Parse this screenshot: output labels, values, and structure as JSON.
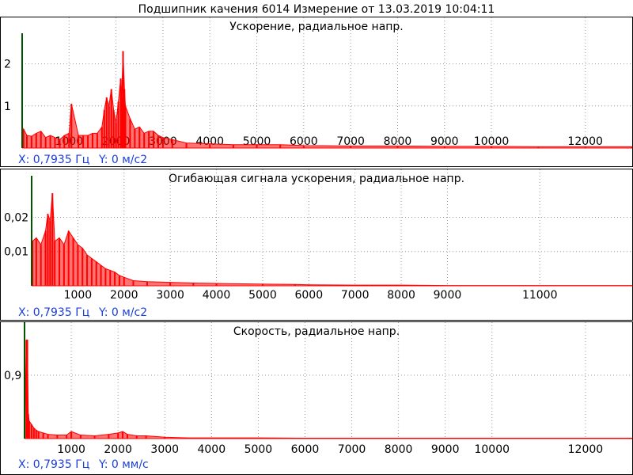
{
  "window": {
    "title": "Подшипник качения 6014  Измерение от 13.03.2019 10:04:11"
  },
  "colors": {
    "signal": "#ff0000",
    "grid": "#9a9a9a",
    "axis": "#005400",
    "cursor_text": "#1a3fd9"
  },
  "panels": [
    {
      "title": "Ускорение, радиальное напр.",
      "cursor": {
        "x": "X: 0,7935 Гц",
        "y": "Y: 0 м/с2"
      }
    },
    {
      "title": "Огибающая сигнала ускорения, радиальное напр.",
      "cursor": {
        "x": "X: 0,7935 Гц",
        "y": "Y: 0 м/с2"
      }
    },
    {
      "title": "Скорость, радиальное напр.",
      "cursor": {
        "x": "X: 0,7935 Гц",
        "y": "Y: 0 мм/с"
      }
    }
  ],
  "chart_data": [
    {
      "type": "bar",
      "title": "Ускорение, радиальное напр.",
      "xlabel": "",
      "ylabel": "",
      "xlim": [
        0,
        13000
      ],
      "ylim": [
        0,
        2.35
      ],
      "x_ticks": [
        1000,
        2000,
        3000,
        4000,
        5000,
        6000,
        7000,
        8000,
        9000,
        10000,
        12000
      ],
      "y_ticks": [
        1,
        2
      ],
      "grid": true,
      "series": [
        {
          "x": [
            30,
            100,
            200,
            300,
            400,
            500,
            600,
            700,
            800,
            900,
            1000,
            1050,
            1200,
            1300,
            1400,
            1500,
            1600,
            1700,
            1750,
            1800,
            1850,
            1900,
            1950,
            2000,
            2050,
            2100,
            2120,
            2150,
            2180,
            2200,
            2300,
            2400,
            2500,
            2600,
            2700,
            2800,
            2900,
            3000,
            3200,
            3500,
            4000,
            4500,
            5000,
            5500,
            6000,
            7000,
            8000,
            9000,
            10000,
            11000,
            12000,
            13000
          ],
          "values": [
            0.45,
            0.3,
            0.28,
            0.35,
            0.4,
            0.25,
            0.3,
            0.25,
            0.2,
            0.3,
            0.35,
            1.05,
            0.3,
            0.3,
            0.3,
            0.35,
            0.35,
            0.5,
            0.9,
            1.2,
            1.0,
            1.4,
            0.9,
            0.6,
            1.1,
            1.65,
            1.2,
            2.3,
            1.4,
            1.0,
            0.7,
            0.45,
            0.5,
            0.35,
            0.4,
            0.4,
            0.3,
            0.25,
            0.2,
            0.12,
            0.1,
            0.08,
            0.08,
            0.08,
            0.06,
            0.05,
            0.05,
            0.04,
            0.04,
            0.03,
            0.03,
            0.03
          ]
        }
      ]
    },
    {
      "type": "bar",
      "title": "Огибающая сигнала ускорения, радиальное напр.",
      "xlabel": "",
      "ylabel": "",
      "xlim": [
        0,
        13000
      ],
      "ylim": [
        0,
        0.0275
      ],
      "x_ticks": [
        1000,
        2000,
        3000,
        4000,
        5000,
        6000,
        7000,
        8000,
        9000,
        11000
      ],
      "y_ticks": [
        0.01,
        0.02
      ],
      "y_tick_labels": [
        "0,01",
        "0,02"
      ],
      "grid": true,
      "series": [
        {
          "x": [
            20,
            100,
            200,
            300,
            350,
            400,
            450,
            500,
            600,
            700,
            800,
            900,
            1000,
            1100,
            1200,
            1300,
            1400,
            1500,
            1600,
            1700,
            1800,
            1900,
            2000,
            2200,
            2500,
            3000,
            3500,
            4000,
            5000,
            5700,
            6000,
            7000,
            8000,
            9000,
            10000,
            12000,
            13000
          ],
          "values": [
            0.013,
            0.014,
            0.012,
            0.016,
            0.021,
            0.019,
            0.027,
            0.013,
            0.014,
            0.012,
            0.016,
            0.014,
            0.012,
            0.011,
            0.009,
            0.008,
            0.007,
            0.006,
            0.005,
            0.0045,
            0.004,
            0.003,
            0.0025,
            0.0015,
            0.0012,
            0.001,
            0.0008,
            0.0007,
            0.0005,
            0.0004,
            0.0003,
            0.0002,
            0.0002,
            0.0001,
            0.0001,
            0.0001,
            0.0001
          ]
        }
      ]
    },
    {
      "type": "bar",
      "title": "Скорость, радиальное напр.",
      "xlabel": "",
      "ylabel": "",
      "xlim": [
        0,
        13000
      ],
      "ylim": [
        0,
        1.45
      ],
      "x_ticks": [
        1000,
        2000,
        3000,
        4000,
        5000,
        6000,
        7000,
        8000,
        9000,
        10000,
        12000
      ],
      "y_ticks": [
        0.9
      ],
      "y_tick_labels": [
        "0,9"
      ],
      "grid": true,
      "series": [
        {
          "x": [
            40,
            60,
            80,
            100,
            150,
            200,
            250,
            300,
            400,
            500,
            700,
            900,
            1000,
            1200,
            1500,
            1800,
            2000,
            2100,
            2200,
            2400,
            2600,
            3000,
            3500,
            4000,
            5000,
            6000,
            8000,
            10000,
            13000
          ],
          "values": [
            1.4,
            1.4,
            0.35,
            0.25,
            0.2,
            0.15,
            0.12,
            0.1,
            0.08,
            0.06,
            0.05,
            0.05,
            0.1,
            0.05,
            0.04,
            0.06,
            0.08,
            0.1,
            0.06,
            0.04,
            0.04,
            0.02,
            0.01,
            0.01,
            0.01,
            0.005,
            0.005,
            0.005,
            0.005
          ]
        }
      ]
    }
  ]
}
